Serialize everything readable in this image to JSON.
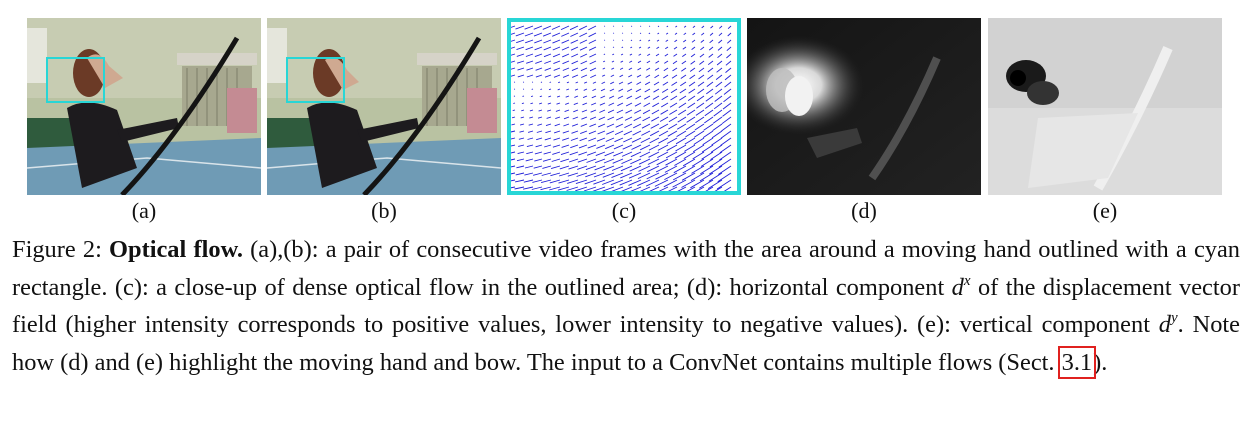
{
  "panels": [
    {
      "label": "(a)"
    },
    {
      "label": "(b)"
    },
    {
      "label": "(c)"
    },
    {
      "label": "(d)"
    },
    {
      "label": "(e)"
    }
  ],
  "caption": {
    "prefix": "Figure 2: ",
    "title": "Optical flow.",
    "part1": " (a),(b): a pair of consecutive video frames with the area around a moving hand outlined with a cyan rectangle. (c): a close-up of dense optical flow in the outlined area; (d): horizontal component ",
    "dx_base": "d",
    "dx_sup": "x",
    "part2": " of the displacement vector field (higher intensity corresponds to positive values, lower intensity to negative values). (e): vertical component ",
    "dy_base": "d",
    "dy_sup": "y",
    "part3": ". Note how (d) and (e) highlight the moving hand and bow. The input to a ConvNet contains multiple flows (Sect. ",
    "ref": "3.1",
    "suffix": ")."
  },
  "colors": {
    "highlight_box": "#28d6d6",
    "flow_arrows": "#1f1fd8",
    "ref_box": "#e0211f"
  }
}
